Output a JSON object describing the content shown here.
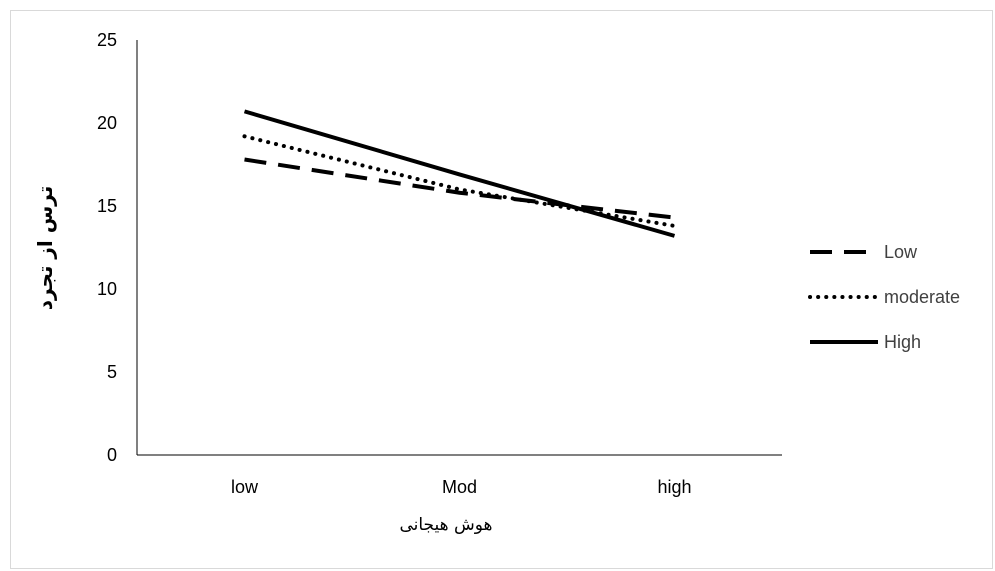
{
  "chart_data": {
    "type": "line",
    "title": "",
    "xlabel": "هوش هیجانی",
    "ylabel": "ترس از تجرد",
    "categories": [
      "low",
      "Mod",
      "high"
    ],
    "ylim": [
      0,
      25
    ],
    "yticks": [
      "0",
      "5",
      "10",
      "15",
      "20",
      "25"
    ],
    "grid": false,
    "legend_position": "right",
    "series": [
      {
        "name": "Low",
        "values": [
          17.8,
          15.8,
          14.3
        ],
        "style": "dashed"
      },
      {
        "name": "moderate",
        "values": [
          19.2,
          16.0,
          13.8
        ],
        "style": "dotted"
      },
      {
        "name": "High",
        "values": [
          20.7,
          16.9,
          13.2
        ],
        "style": "solid"
      }
    ]
  }
}
